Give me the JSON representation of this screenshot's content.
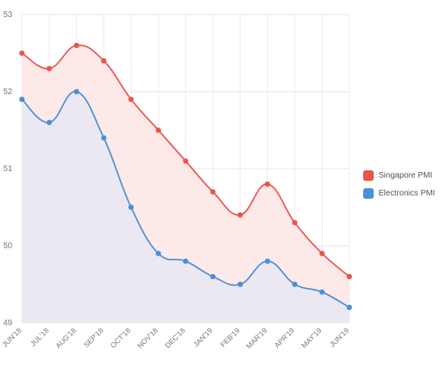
{
  "chart_data": {
    "type": "area",
    "categories": [
      "JUN'18",
      "JUL'18",
      "AUG'18",
      "SEP'18",
      "OCT'18",
      "NOV'18",
      "DEC'18",
      "JAN'19",
      "FEB'19",
      "MAR'19",
      "APR'19",
      "MAY'19",
      "JUN'19"
    ],
    "series": [
      {
        "name": "Singapore PMI",
        "color": "#e8554e",
        "fill": "#fde9e8",
        "values": [
          52.5,
          52.3,
          52.6,
          52.4,
          51.9,
          51.5,
          51.1,
          50.7,
          50.4,
          50.8,
          50.3,
          49.9,
          49.6
        ]
      },
      {
        "name": "Electronics PMI",
        "color": "#4a90d9",
        "fill": "#ece8f2",
        "values": [
          51.9,
          51.6,
          52.0,
          51.4,
          50.5,
          49.9,
          49.8,
          49.6,
          49.5,
          49.8,
          49.5,
          49.4,
          49.2
        ]
      }
    ],
    "yticks": [
      "53",
      "52",
      "51",
      "50",
      "49"
    ],
    "ylim": [
      49,
      53
    ],
    "grid": true,
    "legend": "right"
  }
}
